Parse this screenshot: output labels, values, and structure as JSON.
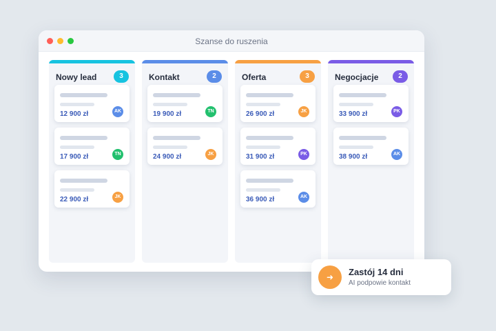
{
  "window": {
    "title": "Szanse do ruszenia"
  },
  "columns": [
    {
      "title": "Nowy lead",
      "count": "3",
      "color": "#17c3e0",
      "cards": [
        {
          "amount": "12 900 zł",
          "avatar": "AK",
          "avatar_color": "#5b8de8"
        },
        {
          "amount": "17 900 zł",
          "avatar": "TN",
          "avatar_color": "#22c06e"
        },
        {
          "amount": "22 900 zł",
          "avatar": "JK",
          "avatar_color": "#f7a043"
        }
      ]
    },
    {
      "title": "Kontakt",
      "count": "2",
      "color": "#5b8de8",
      "cards": [
        {
          "amount": "19 900 zł",
          "avatar": "TN",
          "avatar_color": "#22c06e"
        },
        {
          "amount": "24 900 zł",
          "avatar": "JK",
          "avatar_color": "#f7a043"
        }
      ]
    },
    {
      "title": "Oferta",
      "count": "3",
      "color": "#f7a043",
      "cards": [
        {
          "amount": "26 900 zł",
          "avatar": "JK",
          "avatar_color": "#f7a043"
        },
        {
          "amount": "31 900 zł",
          "avatar": "PK",
          "avatar_color": "#7a5ce6"
        },
        {
          "amount": "36 900 zł",
          "avatar": "AK",
          "avatar_color": "#5b8de8"
        }
      ]
    },
    {
      "title": "Negocjacje",
      "count": "2",
      "color": "#7a5ce6",
      "cards": [
        {
          "amount": "33 900 zł",
          "avatar": "PK",
          "avatar_color": "#7a5ce6"
        },
        {
          "amount": "38 900 zł",
          "avatar": "AK",
          "avatar_color": "#5b8de8"
        }
      ]
    }
  ],
  "toast": {
    "icon": "arrow-right-icon",
    "icon_glyph": "➜",
    "title": "Zastój 14 dni",
    "subtitle": "AI podpowie kontakt",
    "color": "#f7a043"
  }
}
